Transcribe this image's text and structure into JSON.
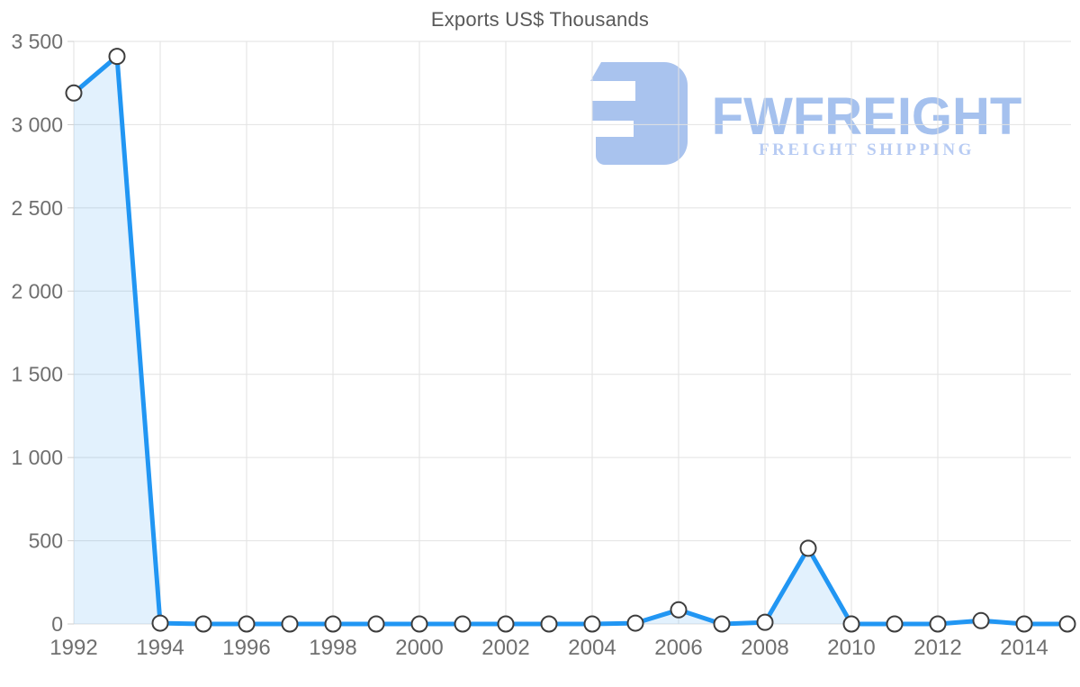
{
  "title": "Exports US$ Thousands",
  "watermark": {
    "brand": "FWFREIGHT",
    "tagline": "FREIGHT SHIPPING",
    "icon": "fwfreight-mark",
    "icon_color": "#a9c3ee",
    "brand_color": "#a5c1ee",
    "tagline_color": "#b7cbf3"
  },
  "chart_data": {
    "type": "area",
    "title": "Exports US$ Thousands",
    "x": [
      1992,
      1993,
      1994,
      1995,
      1996,
      1997,
      1998,
      1999,
      2000,
      2001,
      2002,
      2003,
      2004,
      2005,
      2006,
      2007,
      2008,
      2009,
      2010,
      2011,
      2012,
      2013,
      2014,
      2015
    ],
    "values": [
      3190,
      3410,
      5,
      0,
      0,
      0,
      0,
      0,
      0,
      0,
      0,
      0,
      0,
      5,
      85,
      0,
      10,
      455,
      0,
      0,
      0,
      20,
      0,
      0
    ],
    "series_name": "Exports US$ Thousands",
    "xlabel": "",
    "ylabel": "",
    "xlim": [
      1992,
      2015
    ],
    "ylim": [
      0,
      3500
    ],
    "ytick_values": [
      0,
      500,
      1000,
      1500,
      2000,
      2500,
      3000,
      3500
    ],
    "ytick_labels": [
      "0",
      "500",
      "1 000",
      "1 500",
      "2 000",
      "2 500",
      "3 000",
      "3 500"
    ],
    "xtick_values": [
      1992,
      1994,
      1996,
      1998,
      2000,
      2002,
      2004,
      2006,
      2008,
      2010,
      2012,
      2014
    ],
    "xtick_labels": [
      "1992",
      "1994",
      "1996",
      "1998",
      "2000",
      "2002",
      "2004",
      "2006",
      "2008",
      "2010",
      "2012",
      "2014"
    ],
    "grid": true,
    "legend": false,
    "line_color": "#2196f3",
    "area_fill": "rgba(33,150,243,0.13)",
    "marker_fill": "#ffffff",
    "marker_stroke": "#3d3d3d",
    "grid_color": "#e2e2e2",
    "tick_color": "#cfcfcf",
    "axis_text_color": "#6f6f6f"
  }
}
